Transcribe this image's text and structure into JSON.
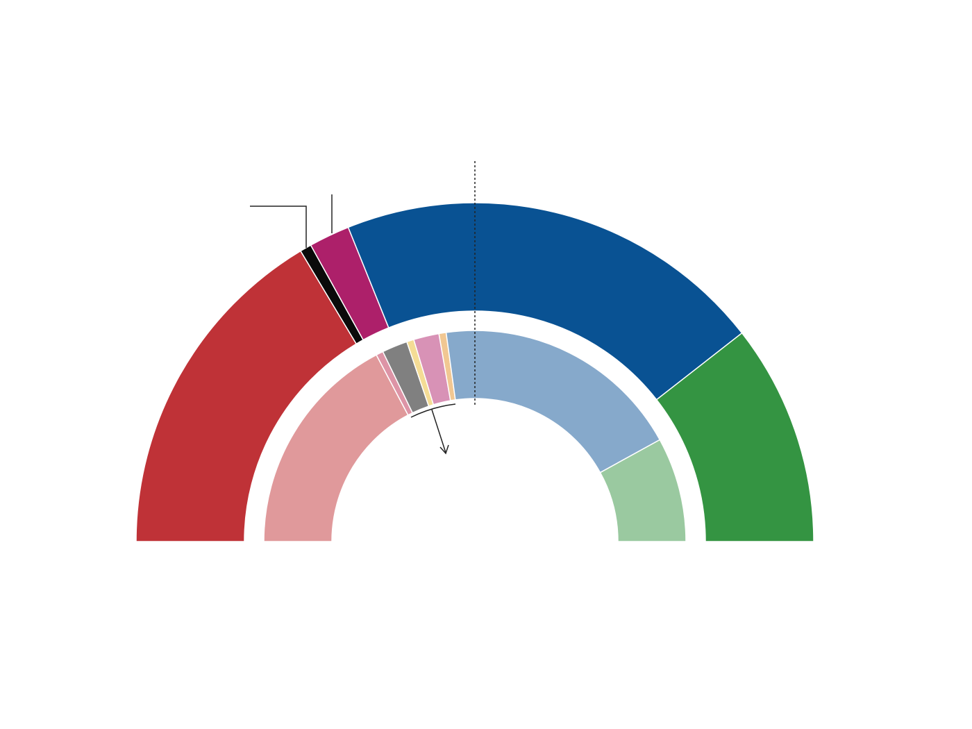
{
  "chart_data": {
    "type": "semi-donut",
    "series": [
      {
        "values": [
          32.8,
          1.1,
          3.9,
          41.1,
          21.1
        ],
        "colors": [
          "#bf3237",
          "#0a0a0a",
          "#ad206a",
          "#095293",
          "#349442"
        ]
      },
      {
        "values": [
          34.5,
          1.1,
          3.9,
          1.1,
          3.9,
          1.1,
          38.3,
          16.0
        ],
        "colors": [
          "#e0999b",
          "#dd94a6",
          "#808080",
          "#f4dc95",
          "#d892b6",
          "#f1c792",
          "#86a9cb",
          "#9ac9a0"
        ]
      }
    ]
  }
}
